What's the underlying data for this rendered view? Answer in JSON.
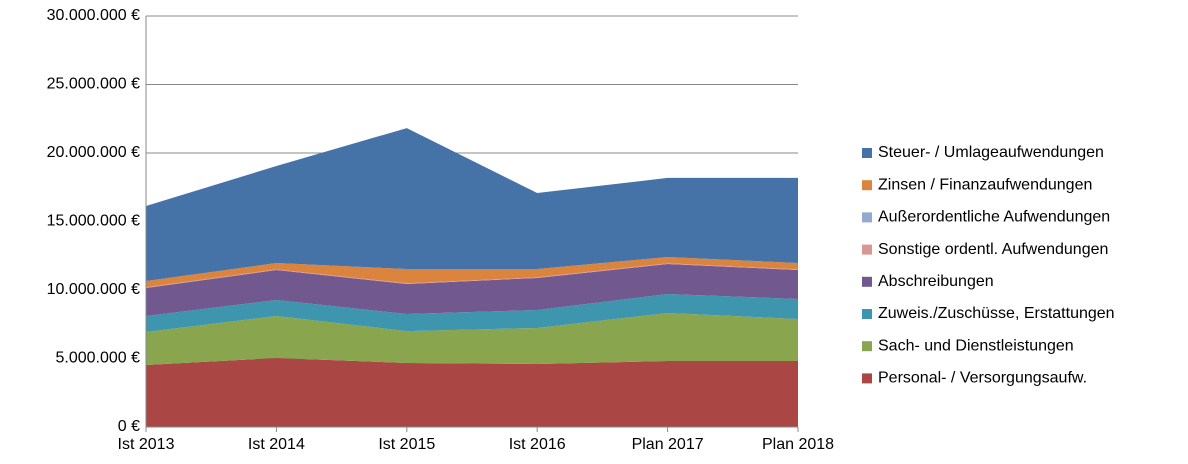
{
  "chart_data": {
    "type": "stacked_area",
    "categories": [
      "Ist 2013",
      "Ist 2014",
      "Ist 2015",
      "Ist 2016",
      "Plan 2017",
      "Plan 2018"
    ],
    "series": [
      {
        "name": "Personal- / Versorgungsaufw.",
        "color": "#aa4643",
        "values": [
          4530000,
          5040000,
          4670000,
          4600000,
          4820000,
          4820000
        ]
      },
      {
        "name": "Sach- und Dienstleistungen",
        "color": "#89a54e",
        "values": [
          2400000,
          3060000,
          2330000,
          2630000,
          3500000,
          3060000
        ]
      },
      {
        "name": "Zuweis./Zuschüsse, Erstattungen",
        "color": "#3d96ae",
        "values": [
          1170000,
          1170000,
          1250000,
          1310000,
          1390000,
          1460000
        ]
      },
      {
        "name": "Abschreibungen",
        "color": "#71588f",
        "values": [
          2050000,
          2190000,
          2190000,
          2340000,
          2190000,
          2120000
        ]
      },
      {
        "name": "Sonstige ordentl. Aufwendungen",
        "color": "#d99694",
        "values": [
          50000,
          50000,
          50000,
          50000,
          50000,
          50000
        ]
      },
      {
        "name": "Außerordentliche Aufwendungen",
        "color": "#93a9cf",
        "values": [
          0,
          0,
          0,
          0,
          0,
          0
        ]
      },
      {
        "name": "Zinsen / Finanzaufwendungen",
        "color": "#db843d",
        "values": [
          460000,
          460000,
          1040000,
          600000,
          460000,
          460000
        ]
      },
      {
        "name": "Steuer- / Umlageaufwendungen",
        "color": "#4572a7",
        "values": [
          5470000,
          7080000,
          10290000,
          5550000,
          5770000,
          6210000
        ]
      }
    ],
    "ylim": [
      0,
      30000000
    ],
    "yticks": [
      {
        "value": 0,
        "label": "0 €"
      },
      {
        "value": 5000000,
        "label": "5.000.000 €"
      },
      {
        "value": 10000000,
        "label": "10.000.000 €"
      },
      {
        "value": 15000000,
        "label": "15.000.000 €"
      },
      {
        "value": 20000000,
        "label": "20.000.000 €"
      },
      {
        "value": 25000000,
        "label": "25.000.000 €"
      },
      {
        "value": 30000000,
        "label": "30.000.000 €"
      }
    ],
    "grid": true,
    "legend": "right"
  }
}
